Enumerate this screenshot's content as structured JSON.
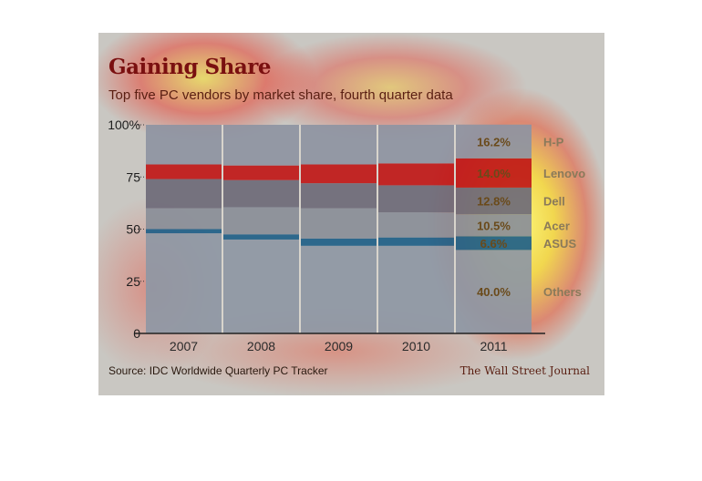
{
  "header": {
    "title": "Gaining Share",
    "subtitle": "Top five PC vendors by market share, fourth quarter data"
  },
  "footer": {
    "source": "Source: IDC Worldwide Quarterly PC Tracker",
    "publisher": "The Wall Street Journal"
  },
  "colors": {
    "background": "#c9c7c2",
    "others": "#8e97a4",
    "asus": "#1f5f88",
    "acer": "#8a8e98",
    "dell": "#6e6a78",
    "lenovo": "#c01818",
    "hp": "#8e94a2",
    "heat_red": "#e8140c",
    "heat_yellow": "#fff23a"
  },
  "chart_data": {
    "type": "bar",
    "stacked": true,
    "categories": [
      "2007",
      "2008",
      "2009",
      "2010",
      "2011"
    ],
    "ylim": [
      0,
      100
    ],
    "yticks": [
      "0",
      "25",
      "50",
      "75",
      "100%"
    ],
    "series": [
      {
        "name": "Others",
        "values": [
          48,
          45,
          42,
          42,
          40.0
        ]
      },
      {
        "name": "ASUS",
        "values": [
          2,
          2.5,
          3.5,
          4,
          6.6
        ]
      },
      {
        "name": "Acer",
        "values": [
          10,
          13,
          14.5,
          12,
          10.5
        ]
      },
      {
        "name": "Dell",
        "values": [
          14,
          13,
          12,
          13,
          12.8
        ]
      },
      {
        "name": "Lenovo",
        "values": [
          7,
          7,
          9,
          10.5,
          14.0
        ]
      },
      {
        "name": "H-P",
        "values": [
          19,
          19.5,
          19,
          18.5,
          16.2
        ]
      }
    ],
    "data_labels_2011": [
      "40.0%",
      "6.6%",
      "10.5%",
      "12.8%",
      "14.0%",
      "16.2%"
    ],
    "legend_labels": [
      "Others",
      "ASUS",
      "Acer",
      "Dell",
      "Lenovo",
      "H-P"
    ]
  }
}
